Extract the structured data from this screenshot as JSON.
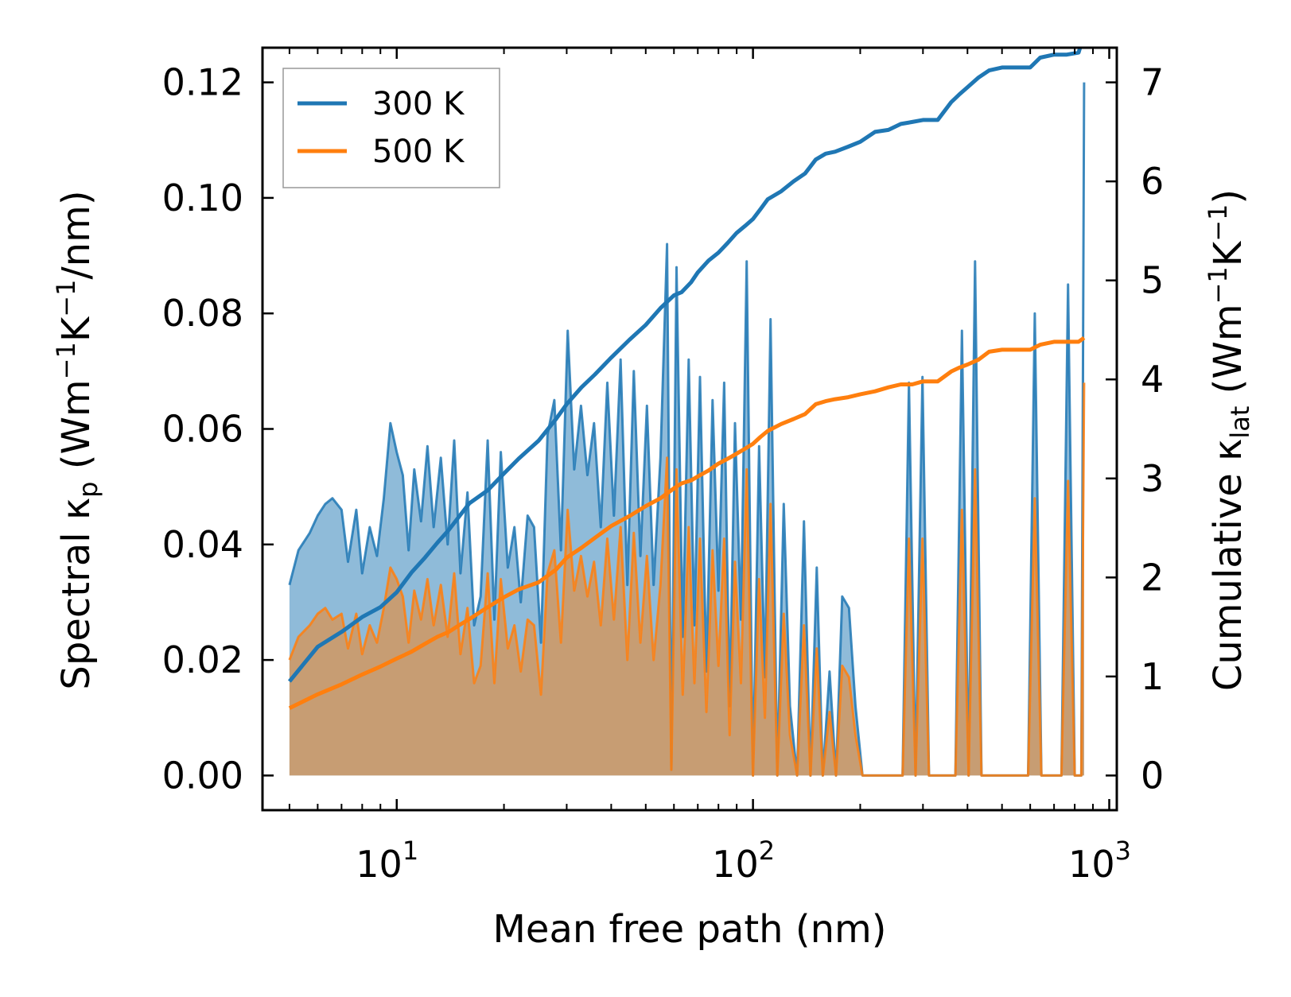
{
  "chart_data": {
    "type": "area",
    "xscale": "log",
    "xlabel": "Mean free path (nm)",
    "ylabel_left": {
      "prefix": "Spectral κ",
      "sub": "p",
      "units_open": " (Wm",
      "sup1": "−1",
      "mid": "K",
      "sup2": "−1",
      "units_close": "/nm)"
    },
    "ylabel_right": {
      "prefix": "Cumulative κ",
      "sub": "lat",
      "units_open": " (Wm",
      "sup1": "−1",
      "mid": "K",
      "sup2": "−1",
      "units_close": ")"
    },
    "xlim": [
      4.2,
      1050
    ],
    "ylim_left": [
      -0.006,
      0.126
    ],
    "ylim_right": [
      -0.35,
      7.35
    ],
    "x_ticks": [
      {
        "value": 10,
        "base": "10",
        "exp": "1"
      },
      {
        "value": 100,
        "base": "10",
        "exp": "2"
      },
      {
        "value": 1000,
        "base": "10",
        "exp": "3"
      }
    ],
    "y_left_ticks": [
      "0.00",
      "0.02",
      "0.04",
      "0.06",
      "0.08",
      "0.10",
      "0.12"
    ],
    "y_left_tick_values": [
      0,
      0.02,
      0.04,
      0.06,
      0.08,
      0.1,
      0.12
    ],
    "y_right_ticks": [
      "0",
      "1",
      "2",
      "3",
      "4",
      "5",
      "6",
      "7"
    ],
    "y_right_tick_values": [
      0,
      1,
      2,
      3,
      4,
      5,
      6,
      7
    ],
    "legend": {
      "position": "top-left",
      "entries": [
        {
          "name": "300 K",
          "color": "#1f77b4"
        },
        {
          "name": "500 K",
          "color": "#ff7f0e"
        }
      ]
    },
    "series": [
      {
        "name": "300 K spectral",
        "axis": "left",
        "kind": "area",
        "color": "#1f77b4",
        "x": [
          5.0,
          5.3,
          5.7,
          6.0,
          6.3,
          6.6,
          7.0,
          7.3,
          7.7,
          8.0,
          8.4,
          8.8,
          9.2,
          9.6,
          10.0,
          10.4,
          10.8,
          11.2,
          11.7,
          12.2,
          12.7,
          13.3,
          13.9,
          14.5,
          15.1,
          15.8,
          16.5,
          17.2,
          18.0,
          18.8,
          19.6,
          20.5,
          21.4,
          22.3,
          23.3,
          24.3,
          25.4,
          26.5,
          27.7,
          28.9,
          30.2,
          31.5,
          32.9,
          34.3,
          35.8,
          37.4,
          39.0,
          40.7,
          42.5,
          44.4,
          46.3,
          48.3,
          50.4,
          52.6,
          55.0,
          57.4,
          59.0,
          61.0,
          63.5,
          66.0,
          68.5,
          71.0,
          74.0,
          77.0,
          80.0,
          83.0,
          86.0,
          89.0,
          92.5,
          96.0,
          100.0,
          104.0,
          108.0,
          112.0,
          117.0,
          122.0,
          127.0,
          133.0,
          139.0,
          145.0,
          151.0,
          157.0,
          164.0,
          171.0,
          178.0,
          186.0,
          194.0,
          203.0,
          212.0,
          221.0,
          231.0,
          241.0,
          252.0,
          263.0,
          274.0,
          286.0,
          299.0,
          312.0,
          326.0,
          340.0,
          355.0,
          370.0,
          386.0,
          403.0,
          420.0,
          438.0,
          457.0,
          477.0,
          498.0,
          520.0,
          543.0,
          567.0,
          592.0,
          618.0,
          645.0,
          673.0,
          703.0,
          734.0,
          766.0,
          800.0,
          835.0,
          850.0
        ],
        "values": [
          0.033,
          0.039,
          0.042,
          0.045,
          0.047,
          0.048,
          0.046,
          0.037,
          0.046,
          0.035,
          0.043,
          0.038,
          0.048,
          0.061,
          0.056,
          0.052,
          0.039,
          0.053,
          0.044,
          0.057,
          0.043,
          0.055,
          0.04,
          0.058,
          0.035,
          0.049,
          0.026,
          0.031,
          0.058,
          0.027,
          0.056,
          0.036,
          0.043,
          0.03,
          0.045,
          0.043,
          0.023,
          0.059,
          0.065,
          0.039,
          0.077,
          0.053,
          0.064,
          0.052,
          0.061,
          0.043,
          0.068,
          0.045,
          0.072,
          0.033,
          0.07,
          0.038,
          0.064,
          0.033,
          0.055,
          0.092,
          0.001,
          0.088,
          0.024,
          0.072,
          0.026,
          0.069,
          0.018,
          0.065,
          0.032,
          0.068,
          0.012,
          0.061,
          0.027,
          0.089,
          0.0,
          0.057,
          0.017,
          0.079,
          0.0,
          0.047,
          0.012,
          0.0,
          0.044,
          0.0,
          0.036,
          0.0,
          0.018,
          0.0,
          0.031,
          0.029,
          0.012,
          0.0,
          0.0,
          0.0,
          0.0,
          0.0,
          0.0,
          0.0,
          0.068,
          0.0,
          0.069,
          0.0,
          0.0,
          0.0,
          0.0,
          0.0,
          0.077,
          0.0,
          0.089,
          0.0,
          0.0,
          0.0,
          0.0,
          0.0,
          0.0,
          0.0,
          0.0,
          0.08,
          0.0,
          0.0,
          0.0,
          0.0,
          0.085,
          0.0,
          0.0,
          0.12
        ]
      },
      {
        "name": "500 K spectral",
        "axis": "left",
        "kind": "area",
        "color": "#ff7f0e",
        "x": [
          5.0,
          5.3,
          5.7,
          6.0,
          6.3,
          6.6,
          7.0,
          7.3,
          7.7,
          8.0,
          8.4,
          8.8,
          9.2,
          9.6,
          10.0,
          10.4,
          10.8,
          11.2,
          11.7,
          12.2,
          12.7,
          13.3,
          13.9,
          14.5,
          15.1,
          15.8,
          16.5,
          17.2,
          18.0,
          18.8,
          19.6,
          20.5,
          21.4,
          22.3,
          23.3,
          24.3,
          25.4,
          26.5,
          27.7,
          28.9,
          30.2,
          31.5,
          32.9,
          34.3,
          35.8,
          37.4,
          39.0,
          40.7,
          42.5,
          44.4,
          46.3,
          48.3,
          50.4,
          52.6,
          55.0,
          57.4,
          59.0,
          61.0,
          63.5,
          66.0,
          68.5,
          71.0,
          74.0,
          77.0,
          80.0,
          83.0,
          86.0,
          89.0,
          92.5,
          96.0,
          100.0,
          104.0,
          108.0,
          112.0,
          117.0,
          122.0,
          127.0,
          133.0,
          139.0,
          145.0,
          151.0,
          157.0,
          164.0,
          171.0,
          178.0,
          186.0,
          194.0,
          203.0,
          212.0,
          221.0,
          231.0,
          241.0,
          252.0,
          263.0,
          274.0,
          286.0,
          299.0,
          312.0,
          326.0,
          340.0,
          355.0,
          370.0,
          386.0,
          403.0,
          420.0,
          438.0,
          457.0,
          477.0,
          498.0,
          520.0,
          543.0,
          567.0,
          592.0,
          618.0,
          645.0,
          673.0,
          703.0,
          734.0,
          766.0,
          800.0,
          835.0,
          850.0
        ],
        "values": [
          0.02,
          0.024,
          0.026,
          0.028,
          0.029,
          0.027,
          0.028,
          0.022,
          0.028,
          0.021,
          0.026,
          0.023,
          0.029,
          0.036,
          0.034,
          0.031,
          0.023,
          0.032,
          0.027,
          0.034,
          0.026,
          0.033,
          0.024,
          0.035,
          0.021,
          0.029,
          0.016,
          0.019,
          0.035,
          0.016,
          0.034,
          0.022,
          0.026,
          0.018,
          0.027,
          0.026,
          0.014,
          0.035,
          0.039,
          0.023,
          0.046,
          0.032,
          0.038,
          0.031,
          0.037,
          0.026,
          0.041,
          0.027,
          0.043,
          0.02,
          0.042,
          0.023,
          0.038,
          0.02,
          0.033,
          0.055,
          0.001,
          0.053,
          0.014,
          0.043,
          0.016,
          0.041,
          0.011,
          0.039,
          0.019,
          0.041,
          0.007,
          0.037,
          0.016,
          0.053,
          0.0,
          0.034,
          0.01,
          0.047,
          0.0,
          0.028,
          0.007,
          0.0,
          0.026,
          0.0,
          0.022,
          0.0,
          0.011,
          0.0,
          0.019,
          0.017,
          0.007,
          0.0,
          0.0,
          0.0,
          0.0,
          0.0,
          0.0,
          0.0,
          0.041,
          0.0,
          0.041,
          0.0,
          0.0,
          0.0,
          0.0,
          0.0,
          0.046,
          0.0,
          0.053,
          0.0,
          0.0,
          0.0,
          0.0,
          0.0,
          0.0,
          0.0,
          0.0,
          0.048,
          0.0,
          0.0,
          0.0,
          0.0,
          0.051,
          0.0,
          0.0,
          0.068
        ]
      },
      {
        "name": "300 K cumulative",
        "axis": "right",
        "kind": "line",
        "color": "#1f77b4",
        "x": [
          5.0,
          6.0,
          7.0,
          8.0,
          9.0,
          10.0,
          11.0,
          12.0,
          13.0,
          14.0,
          15.0,
          16.0,
          18.0,
          20.0,
          22.0,
          25.0,
          28.0,
          30.0,
          33.0,
          36.0,
          40.0,
          45.0,
          50.0,
          55.0,
          60.0,
          63.0,
          67.0,
          70.0,
          75.0,
          80.0,
          85.0,
          90.0,
          95.0,
          100.0,
          105.0,
          110.0,
          120.0,
          130.0,
          140.0,
          150.0,
          160.0,
          170.0,
          185.0,
          200.0,
          220.0,
          240.0,
          260.0,
          280.0,
          300.0,
          330.0,
          360.0,
          380.0,
          400.0,
          430.0,
          460.0,
          500.0,
          600.0,
          640.0,
          700.0,
          760.0,
          820.0,
          850.0
        ],
        "values": [
          0.95,
          1.3,
          1.45,
          1.6,
          1.7,
          1.85,
          2.05,
          2.2,
          2.35,
          2.48,
          2.62,
          2.75,
          2.88,
          3.05,
          3.2,
          3.38,
          3.6,
          3.75,
          3.92,
          4.05,
          4.22,
          4.4,
          4.55,
          4.72,
          4.85,
          4.88,
          4.98,
          5.08,
          5.2,
          5.28,
          5.38,
          5.48,
          5.55,
          5.62,
          5.72,
          5.82,
          5.9,
          6.0,
          6.08,
          6.22,
          6.28,
          6.3,
          6.35,
          6.4,
          6.5,
          6.52,
          6.58,
          6.6,
          6.62,
          6.62,
          6.8,
          6.88,
          6.95,
          7.05,
          7.12,
          7.15,
          7.15,
          7.25,
          7.28,
          7.28,
          7.3,
          7.48
        ]
      },
      {
        "name": "500 K cumulative",
        "axis": "right",
        "kind": "line",
        "color": "#ff7f0e",
        "x": [
          5.0,
          6.0,
          7.0,
          8.0,
          9.0,
          10.0,
          11.0,
          12.0,
          13.0,
          14.0,
          15.0,
          16.0,
          18.0,
          20.0,
          22.0,
          25.0,
          28.0,
          30.0,
          33.0,
          36.0,
          40.0,
          45.0,
          50.0,
          55.0,
          60.0,
          63.0,
          67.0,
          70.0,
          75.0,
          80.0,
          85.0,
          90.0,
          95.0,
          100.0,
          105.0,
          110.0,
          120.0,
          130.0,
          140.0,
          150.0,
          160.0,
          170.0,
          185.0,
          200.0,
          220.0,
          240.0,
          260.0,
          280.0,
          300.0,
          330.0,
          360.0,
          380.0,
          400.0,
          430.0,
          460.0,
          500.0,
          600.0,
          640.0,
          700.0,
          760.0,
          820.0,
          850.0
        ],
        "values": [
          0.68,
          0.82,
          0.92,
          1.02,
          1.1,
          1.18,
          1.25,
          1.33,
          1.4,
          1.45,
          1.52,
          1.58,
          1.7,
          1.8,
          1.88,
          1.95,
          2.08,
          2.2,
          2.3,
          2.4,
          2.52,
          2.62,
          2.72,
          2.8,
          2.9,
          2.95,
          2.98,
          3.02,
          3.08,
          3.15,
          3.2,
          3.25,
          3.3,
          3.35,
          3.42,
          3.48,
          3.55,
          3.6,
          3.65,
          3.75,
          3.78,
          3.8,
          3.82,
          3.85,
          3.88,
          3.92,
          3.95,
          3.95,
          3.98,
          3.98,
          4.08,
          4.12,
          4.15,
          4.2,
          4.28,
          4.3,
          4.3,
          4.35,
          4.38,
          4.38,
          4.38,
          4.42
        ]
      }
    ]
  }
}
